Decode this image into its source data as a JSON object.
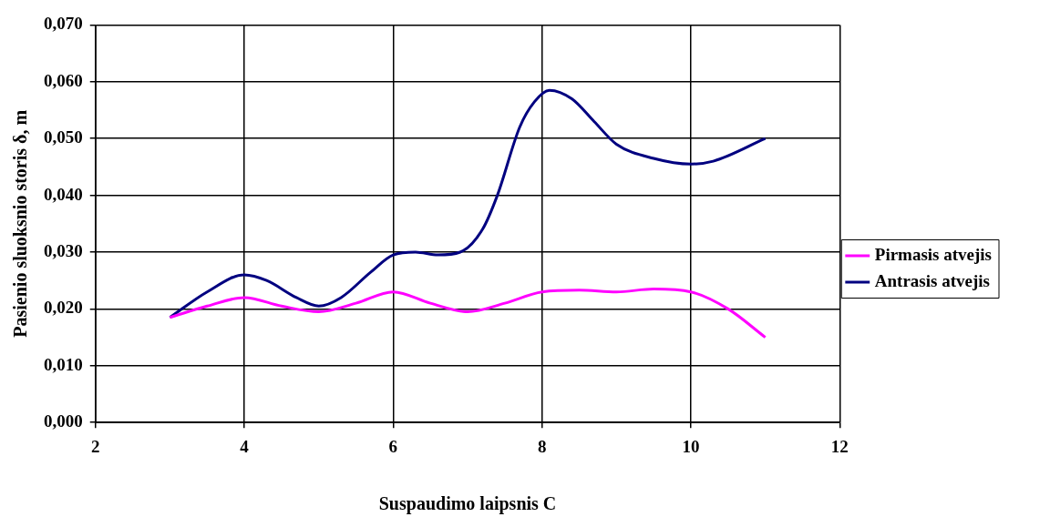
{
  "chart_data": {
    "type": "line",
    "xlabel": "Suspaudimo laipsnis C",
    "ylabel": "Pasienio sluoksnio storis δ, m",
    "xlim": [
      2,
      12
    ],
    "xticks": [
      2,
      4,
      6,
      8,
      10,
      12
    ],
    "ylim": [
      0,
      0.07
    ],
    "yticks": [
      {
        "value": 0,
        "label": "0,000"
      },
      {
        "value": 0.01,
        "label": "0,010"
      },
      {
        "value": 0.02,
        "label": "0,020"
      },
      {
        "value": 0.03,
        "label": "0,030"
      },
      {
        "value": 0.04,
        "label": "0,040"
      },
      {
        "value": 0.05,
        "label": "0,050"
      },
      {
        "value": 0.06,
        "label": "0,060"
      },
      {
        "value": 0.07,
        "label": "0,070"
      }
    ],
    "grid": true,
    "legend": "right",
    "marker": "none",
    "line_style": "solid",
    "series": [
      {
        "name": "Pirmasis atvejis",
        "color": "#ff00ff",
        "x": [
          3,
          3.5,
          4,
          4.5,
          5,
          5.5,
          6,
          6.5,
          7,
          7.5,
          8,
          8.5,
          9,
          9.5,
          10,
          10.5,
          11
        ],
        "values": [
          0.0185,
          0.0205,
          0.022,
          0.0205,
          0.0195,
          0.021,
          0.023,
          0.021,
          0.0195,
          0.021,
          0.023,
          0.0233,
          0.023,
          0.0235,
          0.023,
          0.02,
          0.015
        ]
      },
      {
        "name": "Antrasis atvejis",
        "color": "#000080",
        "x": [
          3,
          3.5,
          4,
          4.3,
          4.7,
          5,
          5.3,
          5.7,
          6,
          6.3,
          6.6,
          6.9,
          7.2,
          7.4,
          7.7,
          7.9,
          8.1,
          8.4,
          8.7,
          9,
          9.5,
          10,
          10.3,
          11
        ],
        "values": [
          0.0185,
          0.023,
          0.026,
          0.025,
          0.022,
          0.0205,
          0.022,
          0.0265,
          0.0295,
          0.03,
          0.0295,
          0.03,
          0.034,
          0.04,
          0.052,
          0.0565,
          0.0585,
          0.057,
          0.053,
          0.049,
          0.0465,
          0.0455,
          0.046,
          0.05
        ]
      }
    ]
  }
}
